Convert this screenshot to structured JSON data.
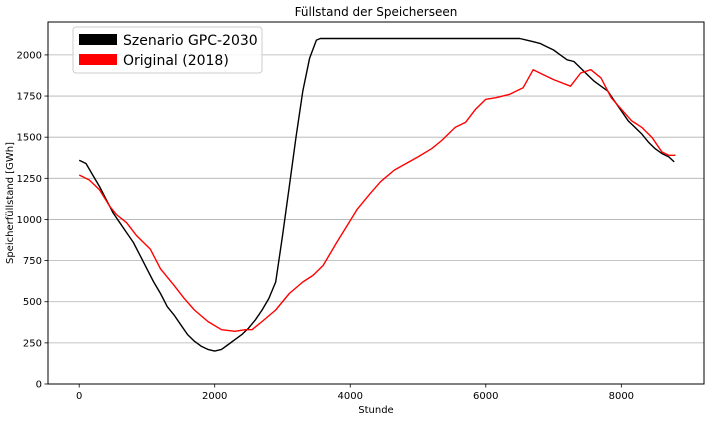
{
  "chart_data": {
    "type": "line",
    "title": "Füllstand der Speicherseen",
    "xlabel": "Stunde",
    "ylabel": "Speicherfüllstand [GWh]",
    "xlim": [
      -460,
      9220
    ],
    "ylim": [
      0,
      2200
    ],
    "x_ticks": [
      0,
      2000,
      4000,
      6000,
      8000
    ],
    "y_ticks": [
      0,
      250,
      500,
      750,
      1000,
      1250,
      1500,
      1750,
      2000
    ],
    "grid": "horizontal",
    "legend_position": "top-left",
    "series": [
      {
        "name": "Szenario GPC-2030",
        "color": "#000000",
        "x": [
          0,
          100,
          200,
          300,
          400,
          500,
          600,
          700,
          800,
          900,
          1000,
          1100,
          1200,
          1300,
          1400,
          1500,
          1600,
          1700,
          1800,
          1900,
          2000,
          2100,
          2200,
          2300,
          2400,
          2500,
          2600,
          2700,
          2800,
          2900,
          3000,
          3100,
          3200,
          3300,
          3400,
          3500,
          3560,
          4000,
          5000,
          6000,
          6500,
          6600,
          6700,
          6800,
          6900,
          7000,
          7100,
          7200,
          7300,
          7400,
          7500,
          7600,
          7700,
          7800,
          7900,
          8000,
          8100,
          8200,
          8300,
          8400,
          8500,
          8600,
          8700,
          8780
        ],
        "values": [
          1360,
          1340,
          1270,
          1200,
          1120,
          1040,
          980,
          920,
          860,
          780,
          700,
          620,
          550,
          470,
          420,
          360,
          300,
          260,
          230,
          210,
          200,
          210,
          240,
          270,
          300,
          340,
          390,
          450,
          520,
          620,
          900,
          1200,
          1500,
          1780,
          1980,
          2090,
          2100,
          2100,
          2100,
          2100,
          2100,
          2090,
          2080,
          2070,
          2050,
          2030,
          2000,
          1970,
          1960,
          1920,
          1880,
          1840,
          1810,
          1780,
          1720,
          1660,
          1600,
          1560,
          1520,
          1470,
          1430,
          1400,
          1380,
          1350
        ]
      },
      {
        "name": "Original (2018)",
        "color": "#ff0000",
        "x": [
          0,
          150,
          300,
          450,
          550,
          700,
          850,
          1050,
          1200,
          1400,
          1550,
          1700,
          1900,
          2100,
          2300,
          2450,
          2550,
          2700,
          2900,
          3100,
          3300,
          3450,
          3600,
          3800,
          3950,
          4100,
          4300,
          4450,
          4650,
          5000,
          5200,
          5350,
          5550,
          5700,
          5850,
          6000,
          6150,
          6350,
          6550,
          6700,
          6850,
          7000,
          7250,
          7400,
          7550,
          7700,
          7850,
          8000,
          8150,
          8300,
          8450,
          8600,
          8700,
          8800
        ],
        "values": [
          1270,
          1240,
          1180,
          1080,
          1030,
          980,
          900,
          820,
          700,
          600,
          520,
          450,
          380,
          330,
          320,
          330,
          330,
          380,
          450,
          550,
          620,
          660,
          720,
          860,
          960,
          1060,
          1160,
          1230,
          1300,
          1380,
          1430,
          1480,
          1560,
          1590,
          1670,
          1730,
          1740,
          1760,
          1800,
          1910,
          1880,
          1850,
          1810,
          1890,
          1910,
          1860,
          1740,
          1670,
          1600,
          1560,
          1500,
          1410,
          1390,
          1390
        ]
      }
    ]
  }
}
